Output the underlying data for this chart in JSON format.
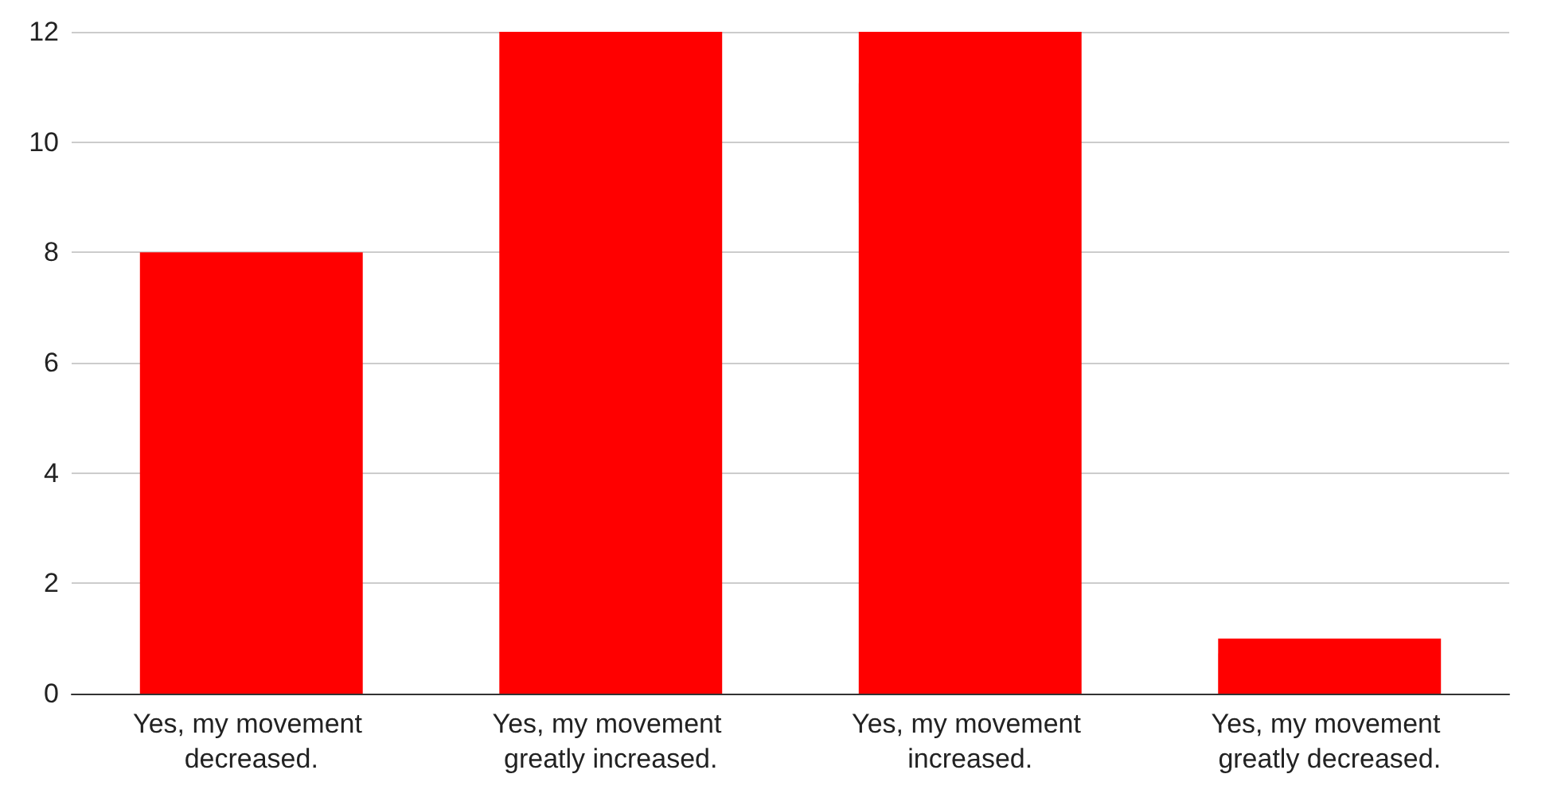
{
  "chart_data": {
    "type": "bar",
    "categories": [
      "Yes, my movement decreased.",
      "Yes, my movement greatly increased.",
      "Yes, my movement increased.",
      "Yes, my movement greatly decreased."
    ],
    "values": [
      8,
      12,
      12,
      1
    ],
    "color": "#ff0000",
    "ylim": [
      0,
      12
    ],
    "yticks": [
      0,
      2,
      4,
      6,
      8,
      10,
      12
    ],
    "grid": "y"
  }
}
